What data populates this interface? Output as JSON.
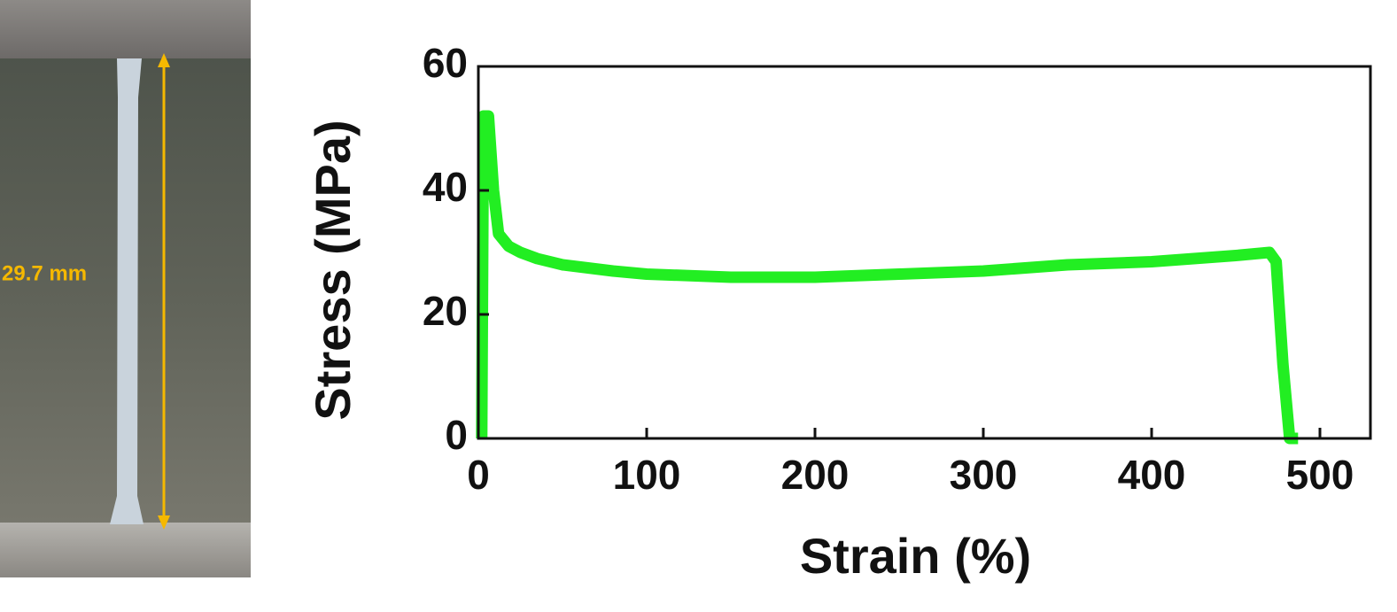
{
  "photo_annotation": "29.7 mm",
  "chart_data": {
    "type": "line",
    "x_label": "Strain (%)",
    "y_label": "Stress (MPa)",
    "xlim": [
      0,
      530
    ],
    "ylim": [
      0,
      60
    ],
    "xticks": [
      0,
      100,
      200,
      300,
      400,
      500
    ],
    "yticks": [
      0,
      20,
      40,
      60
    ],
    "series": [
      {
        "color": "#22ee22",
        "x": [
          2,
          3,
          6,
          9,
          12,
          18,
          25,
          35,
          50,
          80,
          100,
          150,
          200,
          250,
          300,
          350,
          400,
          450,
          470,
          474,
          478,
          482,
          487
        ],
        "values": [
          0,
          52,
          52,
          40,
          33,
          31,
          30,
          29,
          28,
          27,
          26.5,
          26,
          26,
          26.5,
          27,
          28,
          28.5,
          29.5,
          30,
          28.5,
          12,
          0,
          0
        ]
      }
    ]
  }
}
